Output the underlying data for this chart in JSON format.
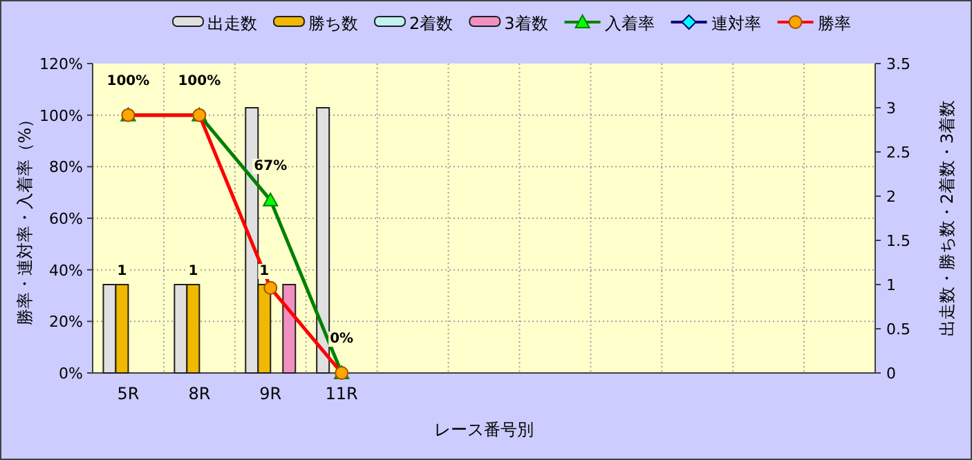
{
  "chart_data": {
    "type": "bar",
    "xlabel": "レース番号別",
    "ylabel": "勝率・連対率・入着率（%）",
    "y2label": "出走数・勝ち数・2着数・3着数",
    "categories": [
      "5R",
      "8R",
      "9R",
      "11R",
      null,
      null,
      null,
      null,
      null,
      null,
      null
    ],
    "series": [
      {
        "name": "出走数",
        "axis": "y2",
        "color": "#e0e0e0",
        "values": [
          1,
          1,
          3,
          3,
          null,
          null,
          null,
          null,
          null,
          null,
          null
        ]
      },
      {
        "name": "勝ち数",
        "axis": "y2",
        "color": "#f0b800",
        "values": [
          1,
          1,
          1,
          0,
          null,
          null,
          null,
          null,
          null,
          null,
          null
        ],
        "value_labels": [
          "1",
          "1",
          "1",
          null,
          null,
          null,
          null,
          null,
          null,
          null,
          null
        ]
      },
      {
        "name": "2着数",
        "axis": "y2",
        "color": "#c0f0f0",
        "values": [
          0,
          0,
          0,
          0,
          null,
          null,
          null,
          null,
          null,
          null,
          null
        ]
      },
      {
        "name": "3着数",
        "axis": "y2",
        "color": "#f090c0",
        "values": [
          0,
          0,
          1,
          0,
          null,
          null,
          null,
          null,
          null,
          null,
          null
        ]
      },
      {
        "name": "入着率",
        "type": "line",
        "color": "#008000",
        "marker": "triangle",
        "values": [
          100,
          100,
          67,
          0,
          null,
          null,
          null,
          null,
          null,
          null,
          null
        ],
        "value_labels": [
          "100%",
          "100%",
          "67%",
          "0%",
          null,
          null,
          null,
          null,
          null,
          null,
          null
        ]
      },
      {
        "name": "連対率",
        "type": "line",
        "color": "#000080",
        "marker": "diamond",
        "values": [
          null,
          null,
          null,
          null,
          null,
          null,
          null,
          null,
          null,
          null,
          null
        ]
      },
      {
        "name": "勝率",
        "type": "line",
        "color": "#ff0000",
        "marker": "circle",
        "values": [
          100,
          100,
          33,
          0,
          null,
          null,
          null,
          null,
          null,
          null,
          null
        ]
      }
    ],
    "ylim": [
      0,
      120
    ],
    "yticks": [
      {
        "value": 0,
        "label": "0%"
      },
      {
        "value": 20,
        "label": "20%"
      },
      {
        "value": 40,
        "label": "40%"
      },
      {
        "value": 60,
        "label": "60%"
      },
      {
        "value": 80,
        "label": "80%"
      },
      {
        "value": 100,
        "label": "100%"
      },
      {
        "value": 120,
        "label": "120%"
      }
    ],
    "y2lim": [
      0,
      3.5
    ],
    "y2ticks": [
      0,
      0.5,
      1,
      1.5,
      2,
      2.5,
      3,
      3.5
    ],
    "grid": true,
    "legend": "top"
  }
}
